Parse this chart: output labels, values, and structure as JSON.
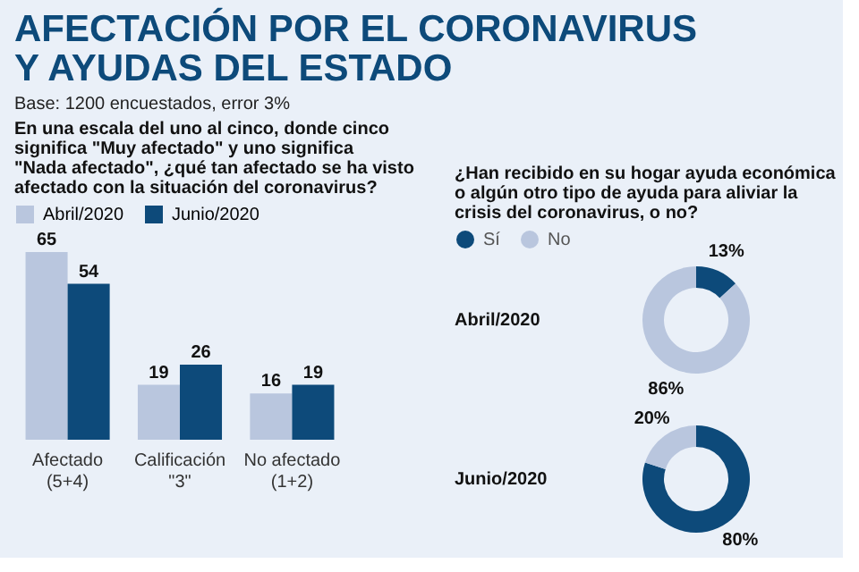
{
  "chart_data": [
    {
      "type": "other",
      "title": "AFECTACIÓN POR EL CORONAVIRUS\nY AYUDAS DEL ESTADO",
      "subtitle": "Base: 1200 encuestados, error 3%"
    },
    {
      "type": "bar",
      "title": "En una escala del uno al cinco, donde cinco\nsignifica \"Muy afectado\" y uno significa\n\"Nada afectado\", ¿qué tan afectado se ha visto\nafectado con la situación del coronavirus?",
      "categories": [
        "Afectado\n(5+4)",
        "Calificación\n\"3\"",
        "No afectado\n(1+2)"
      ],
      "series": [
        {
          "name": "Abril/2020",
          "color": "#b9c6de",
          "values": [
            65,
            19,
            16
          ]
        },
        {
          "name": "Junio/2020",
          "color": "#0d4a7a",
          "values": [
            54,
            26,
            19
          ]
        }
      ],
      "data_labels": true,
      "legend": "top"
    },
    {
      "type": "donut",
      "title": "¿Han recibido en su hogar ayuda económica\no algún otro tipo de ayuda para aliviar la\ncrisis del coronavirus, o no?",
      "annotations": [
        "Abril/2020"
      ],
      "categories": [
        "Sí",
        "No"
      ],
      "values": [
        13,
        86
      ],
      "colors": [
        "#0d4a7a",
        "#b9c6de"
      ],
      "value_labels": [
        "13%",
        "86%"
      ],
      "legend": "top"
    },
    {
      "type": "donut",
      "annotations": [
        "Junio/2020"
      ],
      "categories": [
        null,
        null
      ],
      "values": [
        80,
        20
      ],
      "colors": [
        "#0d4a7a",
        "#b9c6de"
      ],
      "value_labels": [
        "80%",
        "20%"
      ]
    }
  ]
}
